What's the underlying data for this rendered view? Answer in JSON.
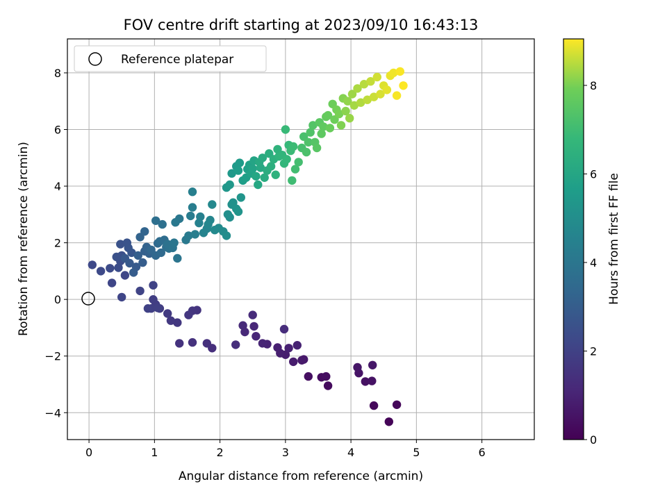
{
  "chart_data": {
    "type": "scatter",
    "title": "FOV centre drift starting at 2023/09/10 16:43:13",
    "xlabel": "Angular distance from reference (arcmin)",
    "ylabel": "Rotation from reference (arcmin)",
    "xlim": [
      -0.33,
      6.8
    ],
    "ylim": [
      -4.95,
      9.2
    ],
    "xticks": [
      0,
      1,
      2,
      3,
      4,
      5,
      6
    ],
    "yticks": [
      -4,
      -2,
      0,
      2,
      4,
      6,
      8
    ],
    "grid": true,
    "legend": {
      "position": "top-left",
      "entries": [
        "Reference platepar"
      ]
    },
    "reference_point": {
      "x": 0,
      "y": 0
    },
    "colorbar": {
      "label": "Hours from first FF file",
      "colormap": "viridis",
      "range": [
        0,
        9.05
      ],
      "ticks": [
        0,
        2,
        4,
        6,
        8
      ]
    },
    "points_hours_x_y": [
      [
        0.1,
        4.58,
        -4.32
      ],
      [
        0.18,
        4.7,
        -3.72
      ],
      [
        0.22,
        4.35,
        -3.75
      ],
      [
        0.28,
        3.65,
        -3.05
      ],
      [
        0.33,
        3.55,
        -2.75
      ],
      [
        0.37,
        3.62,
        -2.72
      ],
      [
        0.42,
        3.35,
        -2.72
      ],
      [
        0.46,
        4.22,
        -2.9
      ],
      [
        0.5,
        4.32,
        -2.88
      ],
      [
        0.55,
        4.12,
        -2.6
      ],
      [
        0.6,
        4.1,
        -2.4
      ],
      [
        0.64,
        4.33,
        -2.32
      ],
      [
        0.68,
        3.28,
        -2.12
      ],
      [
        0.72,
        3.25,
        -2.15
      ],
      [
        0.78,
        3.12,
        -2.2
      ],
      [
        0.82,
        3.0,
        -1.95
      ],
      [
        0.86,
        2.92,
        -1.9
      ],
      [
        0.9,
        2.88,
        -1.7
      ],
      [
        0.94,
        3.05,
        -1.72
      ],
      [
        0.98,
        3.18,
        -1.62
      ],
      [
        1.02,
        2.72,
        -1.58
      ],
      [
        1.06,
        2.65,
        -1.55
      ],
      [
        1.1,
        2.55,
        -1.3
      ],
      [
        1.14,
        2.52,
        -0.95
      ],
      [
        1.18,
        2.38,
        -1.15
      ],
      [
        1.22,
        2.35,
        -0.92
      ],
      [
        1.26,
        2.5,
        -0.55
      ],
      [
        1.3,
        2.98,
        -1.05
      ],
      [
        1.34,
        2.24,
        -1.6
      ],
      [
        1.38,
        1.88,
        -1.72
      ],
      [
        1.42,
        1.8,
        -1.55
      ],
      [
        1.46,
        1.58,
        -1.52
      ],
      [
        1.5,
        1.38,
        -1.55
      ],
      [
        1.55,
        1.65,
        -0.38
      ],
      [
        1.6,
        1.58,
        -0.4
      ],
      [
        1.64,
        1.52,
        -0.55
      ],
      [
        1.68,
        1.35,
        -0.82
      ],
      [
        1.72,
        1.25,
        -0.75
      ],
      [
        1.76,
        1.2,
        -0.5
      ],
      [
        1.8,
        1.08,
        -0.32
      ],
      [
        1.84,
        1.02,
        -0.18
      ],
      [
        1.88,
        0.98,
        0.0
      ],
      [
        1.92,
        0.95,
        -0.32
      ],
      [
        1.96,
        1.05,
        -0.3
      ],
      [
        2.0,
        0.9,
        -0.32
      ],
      [
        2.04,
        0.98,
        0.5
      ],
      [
        2.08,
        0.78,
        0.3
      ],
      [
        2.12,
        0.5,
        0.08
      ],
      [
        2.16,
        0.35,
        0.58
      ],
      [
        2.2,
        0.55,
        0.85
      ],
      [
        2.25,
        0.05,
        1.22
      ],
      [
        2.3,
        0.18,
        1.0
      ],
      [
        2.35,
        0.32,
        1.1
      ],
      [
        2.4,
        0.45,
        1.12
      ],
      [
        2.45,
        0.48,
        1.35
      ],
      [
        2.5,
        0.5,
        1.55
      ],
      [
        2.55,
        0.42,
        1.5
      ],
      [
        2.6,
        0.48,
        1.95
      ],
      [
        2.65,
        0.58,
        2.0
      ],
      [
        2.7,
        0.6,
        1.82
      ],
      [
        2.75,
        0.65,
        1.65
      ],
      [
        2.8,
        0.55,
        1.45
      ],
      [
        2.85,
        0.62,
        1.28
      ],
      [
        2.9,
        0.72,
        1.15
      ],
      [
        2.95,
        0.68,
        0.95
      ],
      [
        3.0,
        0.82,
        1.3
      ],
      [
        3.05,
        0.75,
        1.55
      ],
      [
        3.1,
        0.85,
        1.7
      ],
      [
        3.15,
        0.92,
        1.62
      ],
      [
        3.2,
        0.88,
        1.85
      ],
      [
        3.25,
        0.78,
        2.2
      ],
      [
        3.3,
        0.85,
        2.4
      ],
      [
        3.35,
        0.95,
        1.75
      ],
      [
        3.4,
        1.02,
        1.55
      ],
      [
        3.45,
        1.05,
        1.98
      ],
      [
        3.5,
        1.1,
        1.65
      ],
      [
        3.55,
        1.08,
        2.05
      ],
      [
        3.6,
        1.15,
        2.1
      ],
      [
        3.65,
        1.18,
        1.85
      ],
      [
        3.7,
        1.02,
        2.78
      ],
      [
        3.75,
        1.12,
        2.65
      ],
      [
        3.8,
        1.22,
        1.8
      ],
      [
        3.85,
        1.2,
        1.95
      ],
      [
        3.9,
        1.28,
        1.82
      ],
      [
        3.95,
        1.35,
        1.45
      ],
      [
        4.0,
        1.3,
        2.0
      ],
      [
        4.05,
        1.38,
        2.85
      ],
      [
        4.1,
        1.32,
        2.72
      ],
      [
        4.15,
        1.48,
        2.1
      ],
      [
        4.2,
        1.52,
        2.25
      ],
      [
        4.25,
        1.55,
        2.95
      ],
      [
        4.3,
        1.58,
        3.25
      ],
      [
        4.35,
        1.62,
        2.3
      ],
      [
        4.4,
        1.58,
        3.8
      ],
      [
        4.45,
        1.7,
        2.92
      ],
      [
        4.5,
        1.68,
        2.7
      ],
      [
        4.55,
        1.75,
        2.35
      ],
      [
        4.6,
        1.8,
        2.5
      ],
      [
        4.65,
        1.85,
        2.8
      ],
      [
        4.7,
        1.82,
        2.65
      ],
      [
        4.75,
        1.88,
        3.35
      ],
      [
        4.8,
        1.92,
        2.45
      ],
      [
        4.85,
        1.98,
        2.52
      ],
      [
        4.9,
        2.05,
        2.4
      ],
      [
        4.95,
        2.1,
        2.25
      ],
      [
        5.0,
        2.15,
        2.9
      ],
      [
        5.05,
        2.12,
        3.0
      ],
      [
        5.1,
        2.18,
        3.35
      ],
      [
        5.15,
        2.2,
        3.42
      ],
      [
        5.2,
        2.25,
        3.2
      ],
      [
        5.25,
        2.28,
        3.1
      ],
      [
        5.3,
        2.32,
        3.6
      ],
      [
        5.35,
        2.1,
        3.95
      ],
      [
        5.4,
        2.15,
        4.05
      ],
      [
        5.45,
        2.18,
        4.45
      ],
      [
        5.5,
        2.25,
        4.7
      ],
      [
        5.55,
        2.3,
        4.82
      ],
      [
        5.6,
        2.28,
        4.55
      ],
      [
        5.65,
        2.35,
        4.2
      ],
      [
        5.7,
        2.4,
        4.3
      ],
      [
        5.75,
        2.42,
        4.6
      ],
      [
        5.8,
        2.45,
        4.75
      ],
      [
        5.85,
        2.48,
        4.45
      ],
      [
        5.9,
        2.5,
        4.62
      ],
      [
        5.95,
        2.52,
        4.9
      ],
      [
        6.0,
        2.55,
        4.35
      ],
      [
        6.05,
        2.58,
        4.05
      ],
      [
        6.1,
        2.62,
        4.65
      ],
      [
        6.15,
        2.6,
        4.85
      ],
      [
        6.2,
        2.65,
        5.0
      ],
      [
        6.25,
        2.68,
        4.3
      ],
      [
        6.3,
        2.72,
        4.55
      ],
      [
        6.35,
        2.75,
        5.15
      ],
      [
        6.4,
        2.78,
        4.7
      ],
      [
        6.45,
        2.82,
        4.95
      ],
      [
        6.5,
        2.85,
        4.4
      ],
      [
        6.55,
        2.88,
        5.3
      ],
      [
        6.6,
        2.9,
        5.05
      ],
      [
        6.65,
        2.95,
        5.1
      ],
      [
        6.7,
        2.98,
        4.8
      ],
      [
        6.75,
        3.02,
        4.95
      ],
      [
        6.8,
        3.05,
        5.45
      ],
      [
        6.85,
        3.0,
        6.0
      ],
      [
        6.9,
        3.08,
        5.25
      ],
      [
        6.95,
        3.12,
        5.4
      ],
      [
        7.0,
        3.1,
        4.2
      ],
      [
        7.05,
        3.15,
        4.6
      ],
      [
        7.1,
        3.2,
        4.85
      ],
      [
        7.15,
        3.25,
        5.35
      ],
      [
        7.2,
        3.28,
        5.75
      ],
      [
        7.25,
        3.32,
        5.2
      ],
      [
        7.3,
        3.35,
        5.55
      ],
      [
        7.35,
        3.38,
        5.9
      ],
      [
        7.4,
        3.42,
        6.15
      ],
      [
        7.45,
        3.45,
        5.55
      ],
      [
        7.5,
        3.48,
        5.35
      ],
      [
        7.55,
        3.52,
        6.25
      ],
      [
        7.6,
        3.55,
        5.85
      ],
      [
        7.65,
        3.58,
        6.1
      ],
      [
        7.7,
        3.62,
        6.45
      ],
      [
        7.75,
        3.65,
        6.5
      ],
      [
        7.8,
        3.68,
        6.05
      ],
      [
        7.85,
        3.72,
        6.9
      ],
      [
        7.9,
        3.75,
        6.35
      ],
      [
        7.95,
        3.78,
        6.7
      ],
      [
        8.0,
        3.82,
        6.55
      ],
      [
        8.05,
        3.85,
        6.15
      ],
      [
        8.1,
        3.88,
        7.1
      ],
      [
        8.15,
        3.92,
        6.65
      ],
      [
        8.2,
        3.95,
        7.0
      ],
      [
        8.25,
        3.98,
        6.4
      ],
      [
        8.3,
        4.02,
        7.25
      ],
      [
        8.35,
        4.05,
        6.85
      ],
      [
        8.4,
        4.1,
        7.45
      ],
      [
        8.45,
        4.15,
        6.95
      ],
      [
        8.5,
        4.2,
        7.6
      ],
      [
        8.55,
        4.25,
        7.05
      ],
      [
        8.6,
        4.3,
        7.7
      ],
      [
        8.65,
        4.35,
        7.15
      ],
      [
        8.7,
        4.4,
        7.85
      ],
      [
        8.75,
        4.45,
        7.25
      ],
      [
        8.8,
        4.5,
        7.55
      ],
      [
        8.85,
        4.55,
        7.4
      ],
      [
        8.9,
        4.6,
        7.9
      ],
      [
        8.95,
        4.65,
        8.0
      ],
      [
        9.0,
        4.7,
        7.2
      ],
      [
        9.02,
        4.75,
        8.05
      ],
      [
        9.04,
        4.8,
        7.55
      ]
    ],
    "points_note": "each point is [hours_from_first_ff_file, angular_distance_arcmin, rotation_arcmin]"
  }
}
